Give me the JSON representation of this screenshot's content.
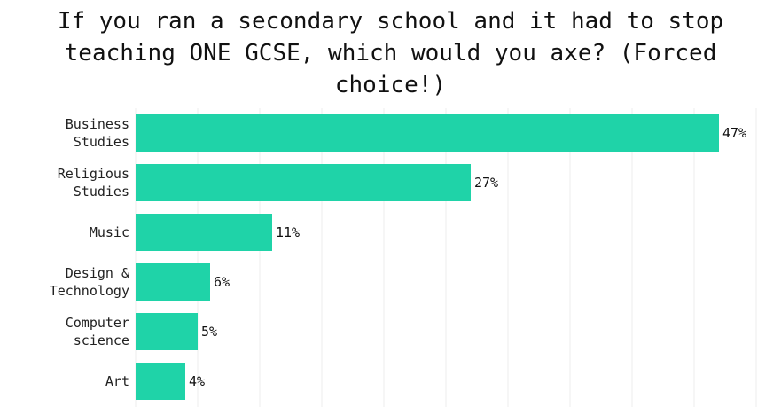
{
  "chart_data": {
    "type": "bar",
    "orientation": "horizontal",
    "title": "If you ran a secondary school and it had to stop teaching ONE GCSE, which would you axe? (Forced choice!)",
    "categories": [
      [
        "Business",
        "Studies"
      ],
      [
        "Religious",
        "Studies"
      ],
      [
        "Music"
      ],
      [
        "Design &",
        "Technology"
      ],
      [
        "Computer",
        "science"
      ],
      [
        "Art"
      ]
    ],
    "values": [
      47,
      27,
      11,
      6,
      5,
      4
    ],
    "value_labels": [
      "47%",
      "27%",
      "11%",
      "6%",
      "5%",
      "4%"
    ],
    "xlim": [
      0,
      50
    ],
    "grid": true,
    "color": "#1fd3a8"
  }
}
